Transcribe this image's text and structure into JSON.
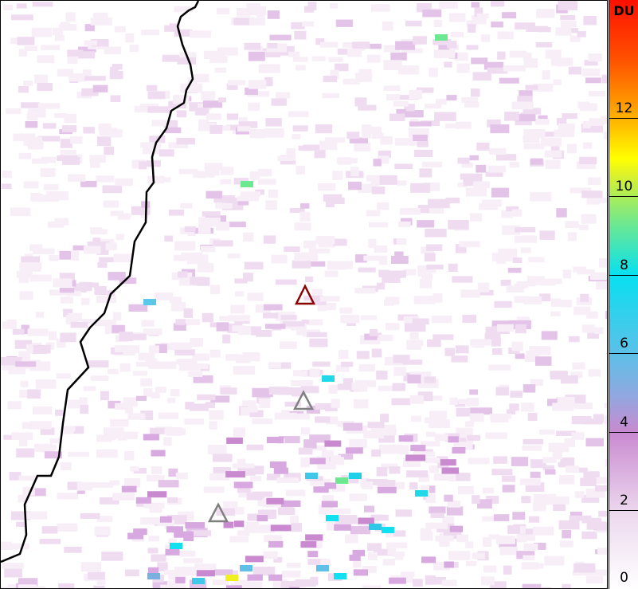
{
  "colorbar": {
    "unit": "DU",
    "range": [
      0,
      15
    ],
    "ticks": [
      "0",
      "2",
      "4",
      "6",
      "8",
      "10",
      "12"
    ],
    "colors": [
      "#ffffff",
      "#ecd8ee",
      "#c98ad0",
      "#8fa8e0",
      "#08e0f0",
      "#6ee890",
      "#ffff00",
      "#ffb000",
      "#ff1000"
    ]
  },
  "markers": [
    {
      "name": "volcano-primary",
      "color": "#8b0000"
    },
    {
      "name": "volcano-secondary",
      "color": "#808080"
    },
    {
      "name": "volcano-tertiary",
      "color": "#808080"
    }
  ],
  "coastline_color": "#000000"
}
